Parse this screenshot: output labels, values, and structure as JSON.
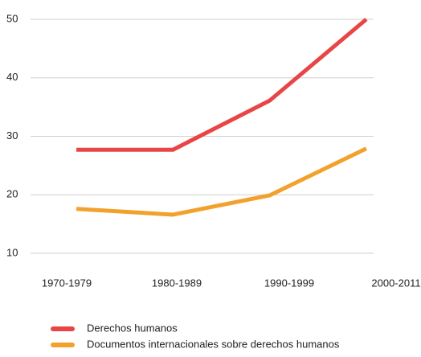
{
  "chart_data": {
    "type": "line",
    "categories": [
      "1970-1979",
      "1980-1989",
      "1990-1999",
      "2000-2011"
    ],
    "series": [
      {
        "name": "Derechos humanos",
        "color": "#e84646",
        "values": [
          27.7,
          27.7,
          36.1,
          50
        ]
      },
      {
        "name": "Documentos internacionales sobre derechos humanos",
        "color": "#f2a22c",
        "values": [
          17.6,
          16.6,
          19.9,
          27.9
        ]
      }
    ],
    "ylim": [
      10,
      50
    ],
    "yticks": [
      10,
      20,
      30,
      40,
      50
    ],
    "grid": true,
    "legend": "bottom"
  }
}
